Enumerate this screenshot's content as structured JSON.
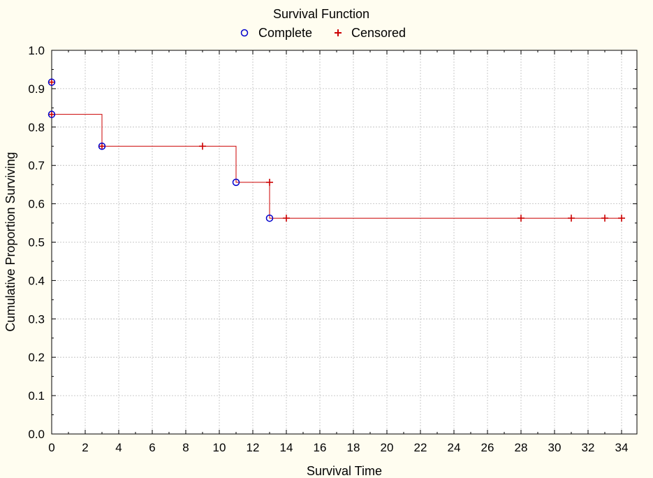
{
  "chart_data": {
    "type": "line",
    "title": "Survival Function",
    "xlabel": "Survival Time",
    "ylabel": "Cumulative Proportion Surviving",
    "xlim": [
      0,
      35
    ],
    "ylim": [
      0,
      1
    ],
    "x_ticks": [
      "0",
      "2",
      "4",
      "6",
      "8",
      "10",
      "12",
      "14",
      "16",
      "18",
      "20",
      "22",
      "24",
      "26",
      "28",
      "30",
      "32",
      "34"
    ],
    "y_ticks": [
      "0.0",
      "0.1",
      "0.2",
      "0.3",
      "0.4",
      "0.5",
      "0.6",
      "0.7",
      "0.8",
      "0.9",
      "1.0"
    ],
    "grid": true,
    "legend": {
      "placement": "top-center",
      "items": [
        {
          "label": "Complete",
          "marker": "circle",
          "color": "#0000cc"
        },
        {
          "label": "Censored",
          "marker": "plus",
          "color": "#cc0000"
        }
      ]
    },
    "step_line": {
      "color": "#cc0000",
      "points": [
        [
          0,
          0.833
        ],
        [
          3,
          0.833
        ],
        [
          3,
          0.75
        ],
        [
          11,
          0.75
        ],
        [
          11,
          0.656
        ],
        [
          13,
          0.656
        ],
        [
          13,
          0.5625
        ],
        [
          34,
          0.5625
        ]
      ]
    },
    "series": [
      {
        "name": "Complete",
        "points": [
          [
            0,
            0.917
          ],
          [
            0,
            0.833
          ],
          [
            3,
            0.75
          ],
          [
            11,
            0.656
          ],
          [
            13,
            0.5625
          ]
        ]
      },
      {
        "name": "Censored",
        "points": [
          [
            0,
            0.917
          ],
          [
            0,
            0.833
          ],
          [
            3,
            0.75
          ],
          [
            9,
            0.75
          ],
          [
            13,
            0.656
          ],
          [
            14,
            0.5625
          ],
          [
            28,
            0.5625
          ],
          [
            31,
            0.5625
          ],
          [
            33,
            0.5625
          ],
          [
            34,
            0.5625
          ]
        ]
      }
    ]
  }
}
